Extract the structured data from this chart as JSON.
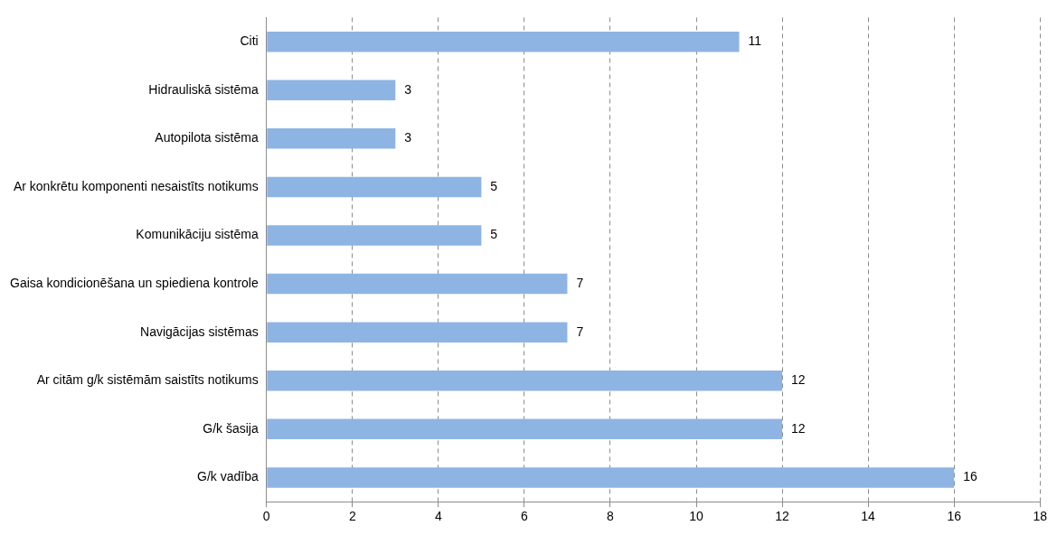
{
  "chart_data": {
    "type": "bar",
    "orientation": "horizontal",
    "categories": [
      "Citi",
      "Hidrauliskā sistēma",
      "Autopilota sistēma",
      "Ar konkrētu komponenti nesaistīts notikums",
      "Komunikāciju sistēma",
      "Gaisa kondicionēšana un spiediena kontrole",
      "Navigācijas sistēmas",
      "Ar citām g/k sistēmām saistīts notikums",
      "G/k šasija",
      "G/k vadība"
    ],
    "values": [
      11,
      3,
      3,
      5,
      5,
      7,
      7,
      12,
      12,
      16
    ],
    "color": "#8eb4e3",
    "xlim": [
      0,
      18
    ],
    "xticks": [
      0,
      2,
      4,
      6,
      8,
      10,
      12,
      14,
      16,
      18
    ],
    "grid": "x",
    "line_style": "dashed",
    "data_labels": true,
    "legend": false
  }
}
